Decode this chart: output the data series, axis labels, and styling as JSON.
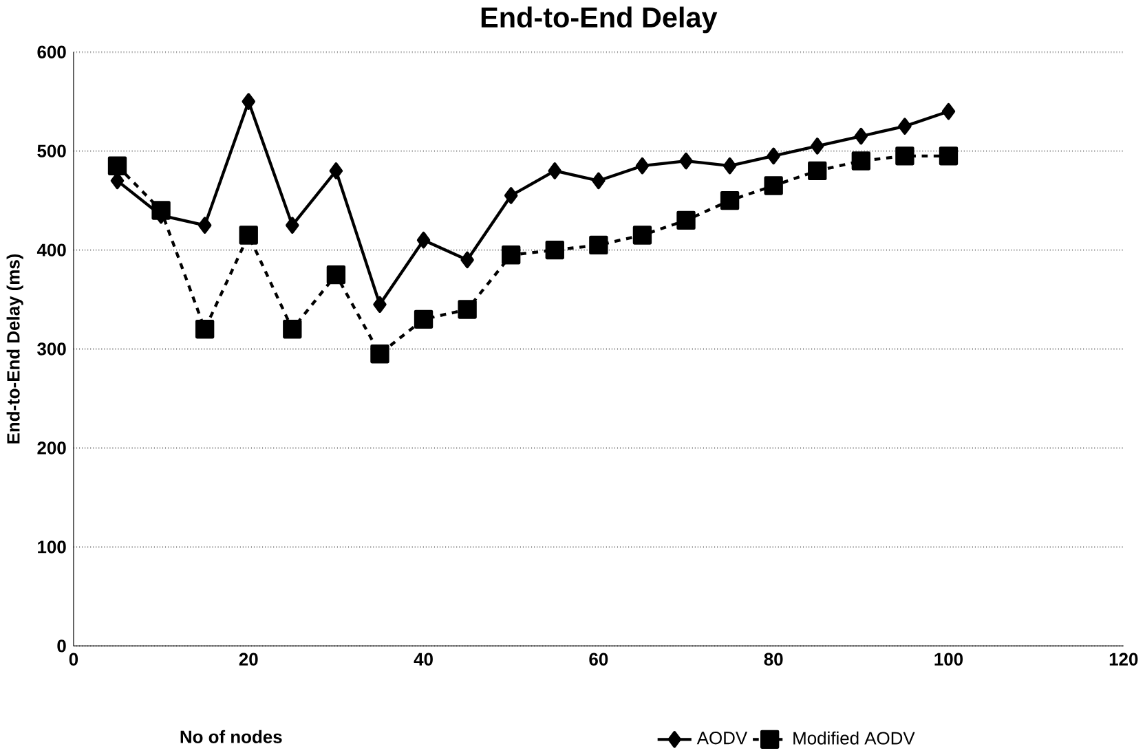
{
  "chart_data": {
    "type": "line",
    "title": "End-to-End Delay",
    "xlabel": "No of nodes",
    "ylabel": "End-to-End Delay (ms)",
    "x": [
      5,
      10,
      15,
      20,
      25,
      30,
      35,
      40,
      45,
      50,
      55,
      60,
      65,
      70,
      75,
      80,
      85,
      90,
      95,
      100
    ],
    "series": [
      {
        "name": "AODV",
        "color": "#000000",
        "marker": "diamond",
        "line_style": "solid",
        "values": [
          470,
          435,
          425,
          550,
          425,
          480,
          345,
          410,
          390,
          455,
          480,
          470,
          485,
          490,
          485,
          495,
          505,
          515,
          525,
          540
        ]
      },
      {
        "name": "Modified AODV",
        "color": "#000000",
        "marker": "square",
        "line_style": "dashed",
        "values": [
          485,
          440,
          320,
          415,
          320,
          375,
          295,
          330,
          340,
          395,
          400,
          405,
          415,
          430,
          450,
          465,
          480,
          490,
          495,
          495
        ]
      }
    ],
    "xlim": [
      0,
      120
    ],
    "xticks": [
      0,
      20,
      40,
      60,
      80,
      100,
      120
    ],
    "ylim": [
      0,
      600
    ],
    "yticks": [
      0,
      100,
      200,
      300,
      400,
      500,
      600
    ],
    "grid": "y",
    "legend": "bottom"
  }
}
